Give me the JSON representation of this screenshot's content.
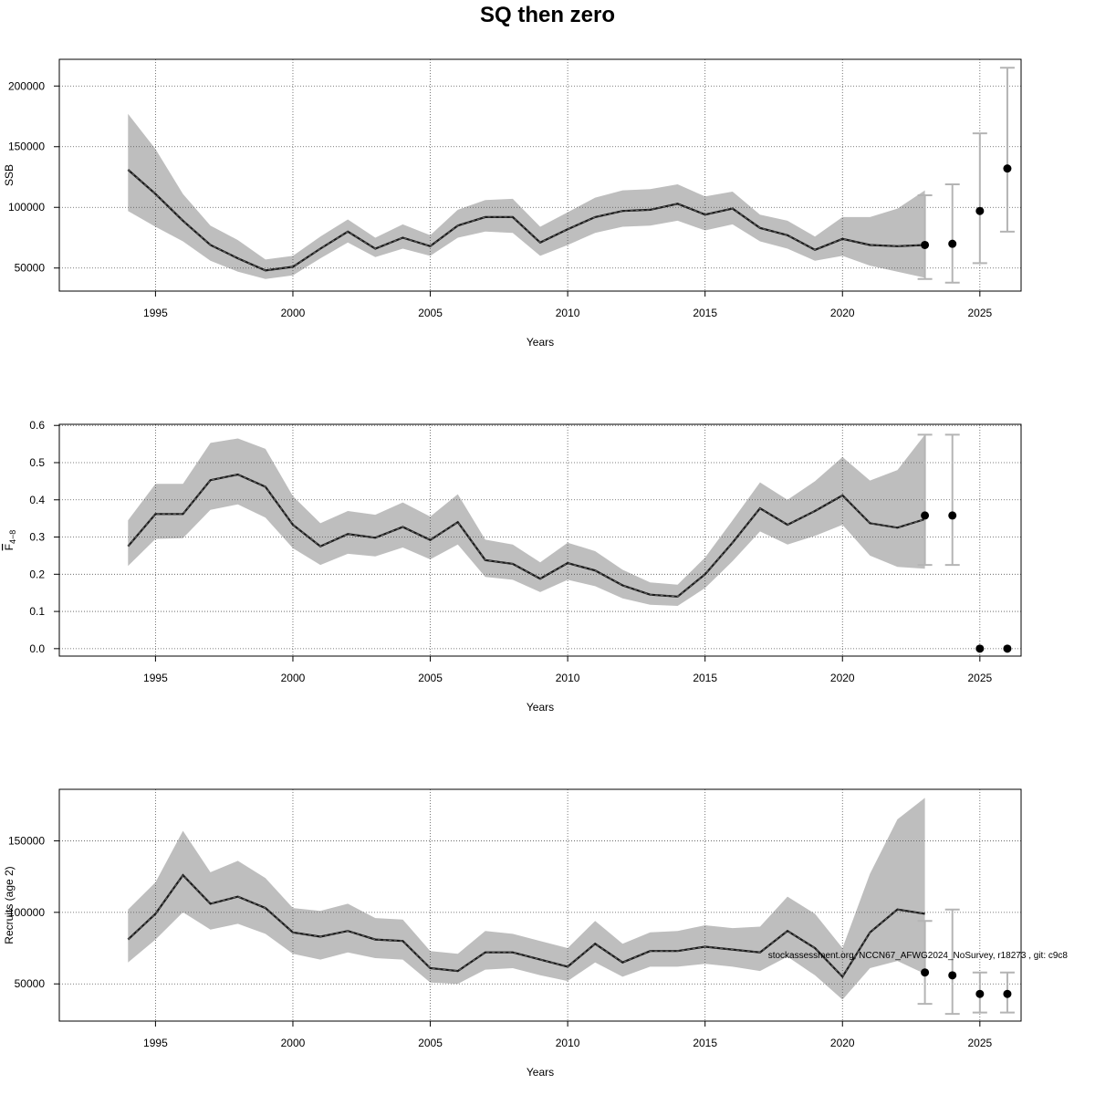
{
  "title": "SQ then zero",
  "footnote": "stockassessment.org, NCCN67_AFWG2024_NoSurvey, r18273 , git: c9c8",
  "colors": {
    "band": "#bebebe",
    "line": "#1a1a1a",
    "errorbar": "#b4b4b4",
    "point": "#000000",
    "grid": "#555555"
  },
  "chart_data": [
    {
      "type": "line",
      "panel": "ssb",
      "xlabel": "Years",
      "ylabel": "SSB",
      "xlim": [
        1991.5,
        2026.5
      ],
      "ylim": [
        31000,
        222000
      ],
      "xticks": [
        1995,
        2000,
        2005,
        2010,
        2015,
        2020,
        2025
      ],
      "yticks": [
        50000,
        100000,
        150000,
        200000
      ],
      "ytick_labels": [
        "50000",
        "100000",
        "150000",
        "200000"
      ],
      "grid": true,
      "x": [
        1994,
        1995,
        1996,
        1997,
        1998,
        1999,
        2000,
        2001,
        2002,
        2003,
        2004,
        2005,
        2006,
        2007,
        2008,
        2009,
        2010,
        2011,
        2012,
        2013,
        2014,
        2015,
        2016,
        2017,
        2018,
        2019,
        2020,
        2021,
        2022,
        2023
      ],
      "estimate": [
        131000,
        111000,
        89000,
        69000,
        58000,
        48000,
        51000,
        66000,
        80000,
        66000,
        75000,
        68000,
        85000,
        92000,
        92000,
        71000,
        82000,
        92000,
        97000,
        98000,
        103000,
        94000,
        99000,
        83000,
        77000,
        65000,
        74000,
        69000,
        68000,
        69000
      ],
      "lower": [
        97000,
        84000,
        72000,
        56000,
        47000,
        41000,
        44000,
        58000,
        71000,
        59000,
        66000,
        60000,
        75000,
        80000,
        79000,
        60000,
        69000,
        79000,
        84000,
        85000,
        89000,
        81000,
        86000,
        72000,
        66000,
        56000,
        60000,
        52000,
        47000,
        42000
      ],
      "upper": [
        177000,
        148000,
        111000,
        85000,
        73000,
        57000,
        60000,
        76000,
        90000,
        75000,
        86000,
        77000,
        98000,
        106000,
        107000,
        84000,
        96000,
        108000,
        114000,
        115000,
        119000,
        109000,
        113000,
        94000,
        89000,
        76000,
        92000,
        92000,
        99000,
        114000
      ],
      "forecast": [
        {
          "year": 2023,
          "value": 69000,
          "low": 41000,
          "high": 110000
        },
        {
          "year": 2024,
          "value": 70000,
          "low": 38000,
          "high": 119000
        },
        {
          "year": 2025,
          "value": 97000,
          "low": 54000,
          "high": 161000
        },
        {
          "year": 2026,
          "value": 132000,
          "low": 80000,
          "high": 215000
        }
      ]
    },
    {
      "type": "line",
      "panel": "fbar",
      "xlabel": "Years",
      "ylabel": "F4−8",
      "ylabel_main": "F",
      "ylabel_sub": "4−8",
      "xlim": [
        1991.5,
        2026.5
      ],
      "ylim": [
        -0.02,
        0.603
      ],
      "xticks": [
        1995,
        2000,
        2005,
        2010,
        2015,
        2020,
        2025
      ],
      "yticks": [
        0.0,
        0.1,
        0.2,
        0.3,
        0.4,
        0.5,
        0.6
      ],
      "ytick_labels": [
        "0.0",
        "0.1",
        "0.2",
        "0.3",
        "0.4",
        "0.5",
        "0.6"
      ],
      "grid": true,
      "x": [
        1994,
        1995,
        1996,
        1997,
        1998,
        1999,
        2000,
        2001,
        2002,
        2003,
        2004,
        2005,
        2006,
        2007,
        2008,
        2009,
        2010,
        2011,
        2012,
        2013,
        2014,
        2015,
        2016,
        2017,
        2018,
        2019,
        2020,
        2021,
        2022,
        2023
      ],
      "estimate": [
        0.275,
        0.362,
        0.362,
        0.453,
        0.468,
        0.435,
        0.333,
        0.275,
        0.308,
        0.298,
        0.327,
        0.292,
        0.34,
        0.238,
        0.228,
        0.188,
        0.23,
        0.21,
        0.17,
        0.145,
        0.14,
        0.2,
        0.285,
        0.377,
        0.333,
        0.37,
        0.412,
        0.337,
        0.325,
        0.348
      ],
      "lower": [
        0.222,
        0.295,
        0.297,
        0.373,
        0.388,
        0.352,
        0.27,
        0.225,
        0.255,
        0.248,
        0.272,
        0.24,
        0.28,
        0.193,
        0.185,
        0.152,
        0.185,
        0.168,
        0.135,
        0.118,
        0.115,
        0.163,
        0.235,
        0.315,
        0.28,
        0.303,
        0.333,
        0.25,
        0.22,
        0.215
      ],
      "upper": [
        0.345,
        0.443,
        0.443,
        0.553,
        0.565,
        0.537,
        0.41,
        0.337,
        0.37,
        0.36,
        0.393,
        0.355,
        0.415,
        0.293,
        0.28,
        0.232,
        0.285,
        0.262,
        0.212,
        0.178,
        0.172,
        0.245,
        0.345,
        0.447,
        0.4,
        0.45,
        0.515,
        0.452,
        0.48,
        0.575
      ],
      "forecast": [
        {
          "year": 2023,
          "value": 0.358,
          "low": 0.225,
          "high": 0.575
        },
        {
          "year": 2024,
          "value": 0.358,
          "low": 0.225,
          "high": 0.575
        },
        {
          "year": 2025,
          "value": 0.0
        },
        {
          "year": 2026,
          "value": 0.0
        }
      ]
    },
    {
      "type": "line",
      "panel": "recruits",
      "xlabel": "Years",
      "ylabel": "Recruits (age 2)",
      "xlim": [
        1991.5,
        2026.5
      ],
      "ylim": [
        24000,
        186000
      ],
      "xticks": [
        1995,
        2000,
        2005,
        2010,
        2015,
        2020,
        2025
      ],
      "yticks": [
        50000,
        100000,
        150000
      ],
      "ytick_labels": [
        "50000",
        "100000",
        "150000"
      ],
      "grid": true,
      "x": [
        1994,
        1995,
        1996,
        1997,
        1998,
        1999,
        2000,
        2001,
        2002,
        2003,
        2004,
        2005,
        2006,
        2007,
        2008,
        2009,
        2010,
        2011,
        2012,
        2013,
        2014,
        2015,
        2016,
        2017,
        2018,
        2019,
        2020,
        2021,
        2022,
        2023
      ],
      "estimate": [
        81000,
        99000,
        126000,
        106000,
        111000,
        103000,
        86000,
        83000,
        87000,
        81000,
        80000,
        61000,
        59000,
        72000,
        72000,
        67000,
        62000,
        78000,
        65000,
        73000,
        73000,
        76000,
        74000,
        72000,
        87000,
        75000,
        55000,
        86000,
        102000,
        99000
      ],
      "lower": [
        65000,
        81000,
        100000,
        88000,
        92000,
        85000,
        71000,
        67000,
        72000,
        68000,
        67000,
        51000,
        50000,
        60000,
        61000,
        56000,
        52000,
        65000,
        55000,
        62000,
        62000,
        64000,
        62000,
        59000,
        69000,
        56000,
        39000,
        61000,
        66000,
        57000
      ],
      "upper": [
        102000,
        121000,
        157000,
        128000,
        136000,
        124000,
        103000,
        101000,
        106000,
        96000,
        95000,
        73000,
        71000,
        87000,
        85000,
        80000,
        75000,
        94000,
        78000,
        86000,
        87000,
        91000,
        89000,
        90000,
        111000,
        99000,
        75000,
        127000,
        165000,
        180000
      ],
      "forecast": [
        {
          "year": 2023,
          "value": 58000,
          "low": 36000,
          "high": 94000
        },
        {
          "year": 2024,
          "value": 56000,
          "low": 29000,
          "high": 102000
        },
        {
          "year": 2025,
          "value": 43000,
          "low": 30000,
          "high": 58000
        },
        {
          "year": 2026,
          "value": 43000,
          "low": 30000,
          "high": 58000
        }
      ]
    }
  ]
}
